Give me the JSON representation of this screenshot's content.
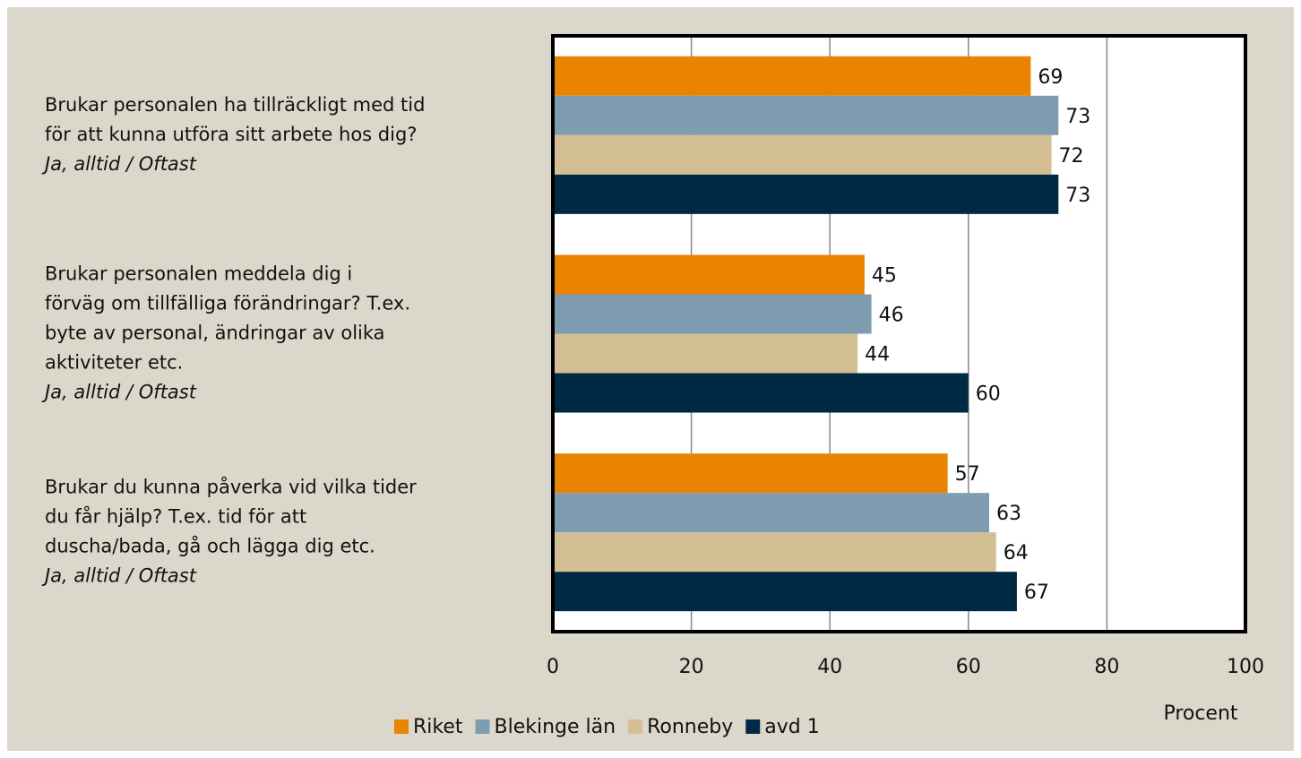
{
  "chart_data": {
    "type": "hbar",
    "categories": [
      [
        "Brukar personalen ha tillräckligt med tid",
        "för att kunna utföra sitt arbete hos dig?",
        "Ja, alltid / Oftast"
      ],
      [
        "Brukar personalen meddela dig i",
        "förväg om tillfälliga förändringar? T.ex.",
        "byte av personal, ändringar av olika",
        "aktiviteter etc.",
        "Ja, alltid / Oftast"
      ],
      [
        "Brukar du kunna påverka vid vilka tider",
        "du får hjälp? T.ex. tid för att",
        "duscha/bada, gå och lägga dig etc.",
        "Ja, alltid / Oftast"
      ]
    ],
    "series": [
      {
        "name": "Riket",
        "color": "#e98300",
        "values": [
          69,
          45,
          57
        ]
      },
      {
        "name": "Blekinge län",
        "color": "#7f9db0",
        "values": [
          73,
          46,
          63
        ]
      },
      {
        "name": "Ronneby",
        "color": "#d4bf94",
        "values": [
          72,
          44,
          64
        ]
      },
      {
        "name": "avd 1",
        "color": "#002a43",
        "values": [
          73,
          60,
          67
        ]
      }
    ],
    "xlim": [
      0,
      100
    ],
    "xticks": [
      0,
      20,
      40,
      60,
      80,
      100
    ],
    "xlabel": "Procent",
    "grid": true
  }
}
